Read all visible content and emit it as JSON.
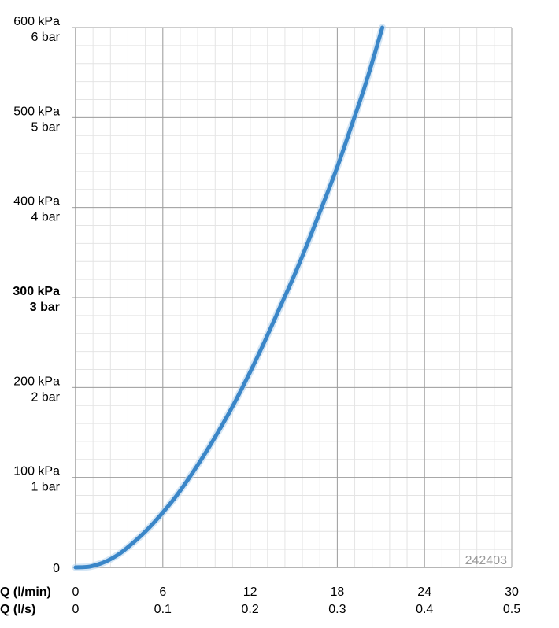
{
  "chart_data": {
    "type": "line",
    "x_label_primary": "Q (l/min)",
    "x_label_secondary": "Q (l/s)",
    "x_ticks_primary": [
      "0",
      "6",
      "12",
      "18",
      "24",
      "30"
    ],
    "x_ticks_secondary": [
      "0",
      "0.1",
      "0.2",
      "0.3",
      "0.4",
      "0.5"
    ],
    "xlim": [
      0,
      30
    ],
    "ylim": [
      0,
      600
    ],
    "y_ticks": [
      {
        "value": 0,
        "kpa": "0",
        "bar": "",
        "bold": false
      },
      {
        "value": 100,
        "kpa": "100 kPa",
        "bar": "1 bar",
        "bold": false
      },
      {
        "value": 200,
        "kpa": "200 kPa",
        "bar": "2 bar",
        "bold": false
      },
      {
        "value": 300,
        "kpa": "300 kPa",
        "bar": "3 bar",
        "bold": true
      },
      {
        "value": 400,
        "kpa": "400 kPa",
        "bar": "4 bar",
        "bold": false
      },
      {
        "value": 500,
        "kpa": "500 kPa",
        "bar": "5 bar",
        "bold": false
      },
      {
        "value": 600,
        "kpa": "600 kPa",
        "bar": "6 bar",
        "bold": false
      }
    ],
    "grid": true,
    "line_color": "#3a86c8",
    "series": [
      {
        "x": [
          0,
          1,
          2,
          3,
          4,
          5,
          6,
          7,
          8,
          9,
          10,
          11,
          12,
          13,
          14,
          15,
          16,
          17,
          18,
          19,
          20,
          21.1
        ],
        "y": [
          0,
          1,
          6,
          15,
          28,
          43,
          61,
          81,
          104,
          129,
          156,
          185,
          217,
          251,
          287,
          323,
          362,
          403,
          445,
          492,
          540,
          600
        ]
      }
    ],
    "id_label": "242403"
  }
}
